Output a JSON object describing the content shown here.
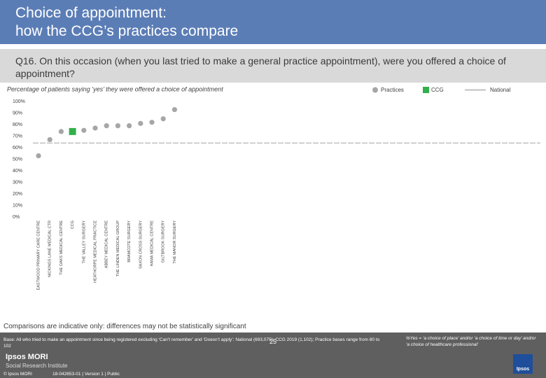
{
  "header": {
    "title_lines": [
      "Choice of appointment:",
      "how the CCG’s practices compare"
    ],
    "question": "Q16. On this occasion (when you last tried to make a general practice appointment), were you offered a choice of appointment?"
  },
  "chart_data": {
    "type": "dot",
    "subtitle": "Percentage of patients saying ‘yes’ they were offered a choice of appointment",
    "categories": [
      "EASTWOOD PRIMARY CARE CENTRE",
      "NICKINGS LANE MEDICAL CTR",
      "THE OAKS MEDICAL CENTRE",
      "CCG",
      "THE VALLEY SURGERY",
      "HEATHORPE MEDICAL PRACTICE",
      "ABBEY MEDICAL CENTRE",
      "THE LINDEN MEDICAL GROUP",
      "BRAMCOTE SURGERY",
      "SAXON CROSS SURGERY",
      "HAMA MEDICAL CENTRE",
      "GILTBROOK SURGERY",
      "THE MANOR SURGERY"
    ],
    "series": [
      {
        "name": "Practices",
        "color": "#a6a6a6",
        "marker": "circle",
        "values": [
          53,
          67,
          74,
          null,
          75,
          77,
          79,
          79,
          79,
          81,
          82,
          85,
          93
        ]
      },
      {
        "name": "CCG",
        "color": "#33b04a",
        "marker": "square",
        "values": [
          null,
          null,
          null,
          74,
          null,
          null,
          null,
          null,
          null,
          null,
          null,
          null,
          null
        ]
      }
    ],
    "national": {
      "name": "National",
      "color": "#c0c0c0",
      "value": 64
    },
    "ylim": [
      0,
      100
    ],
    "yticks": [
      {
        "value": 0,
        "label": "0%"
      },
      {
        "value": 10,
        "label": "10%"
      },
      {
        "value": 20,
        "label": "20%"
      },
      {
        "value": 30,
        "label": "30%"
      },
      {
        "value": 40,
        "label": "40%"
      },
      {
        "value": 50,
        "label": "50%"
      },
      {
        "value": 60,
        "label": "60%"
      },
      {
        "value": 70,
        "label": "70%"
      },
      {
        "value": 80,
        "label": "80%"
      },
      {
        "value": 90,
        "label": "90%"
      },
      {
        "value": 100,
        "label": "100%"
      }
    ]
  },
  "footer": {
    "caveat": "Comparisons are indicative only: differences may not be statistically significant",
    "base": "Base: All who tried to make an appointment since being registered excluding ‘Can’t remember’ and ‘Doesn’t apply’: National (693,075); CCG 2019 (1,102); Practice bases range from 80 to 102",
    "page": "25",
    "note": "%Yes = ‘a choice of place’ and/or ‘a choice of time or day’ and/or ‘a choice of healthcare professional’",
    "brand": "Ipsos MORI",
    "institute": "Social Research Institute",
    "copyright": "© Ipsos MORI",
    "job": "18-042653-01 | Version 1 | Public",
    "logo": "Ipsos"
  }
}
